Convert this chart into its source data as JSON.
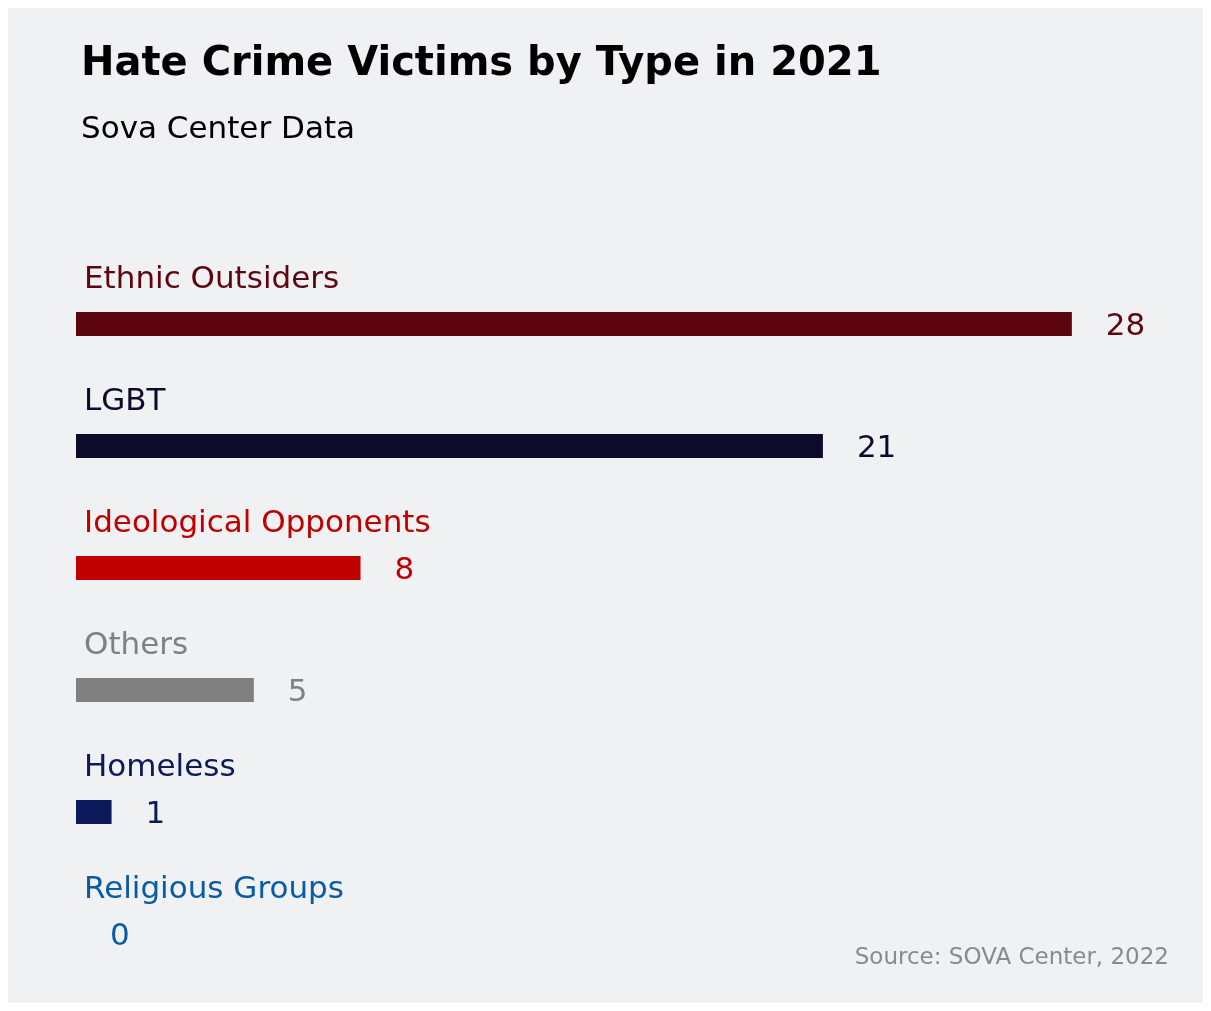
{
  "chart_data": {
    "type": "bar",
    "orientation": "horizontal",
    "title": "Hate Crime Victims by Type in 2021",
    "subtitle": "Sova Center Data",
    "categories": [
      "Ethnic Outsiders",
      "LGBT",
      "Ideological Opponents",
      "Others",
      "Homeless",
      "Religious Groups"
    ],
    "values": [
      28,
      21,
      8,
      5,
      1,
      0
    ],
    "colors": [
      "#5e0610",
      "#0d0a2b",
      "#c00000",
      "#808080",
      "#0c1a5c",
      "#0a5aa6"
    ],
    "data_labels": true,
    "tick_labels": "y",
    "annotations": [
      "Source: SOVA Center, 2022"
    ]
  }
}
